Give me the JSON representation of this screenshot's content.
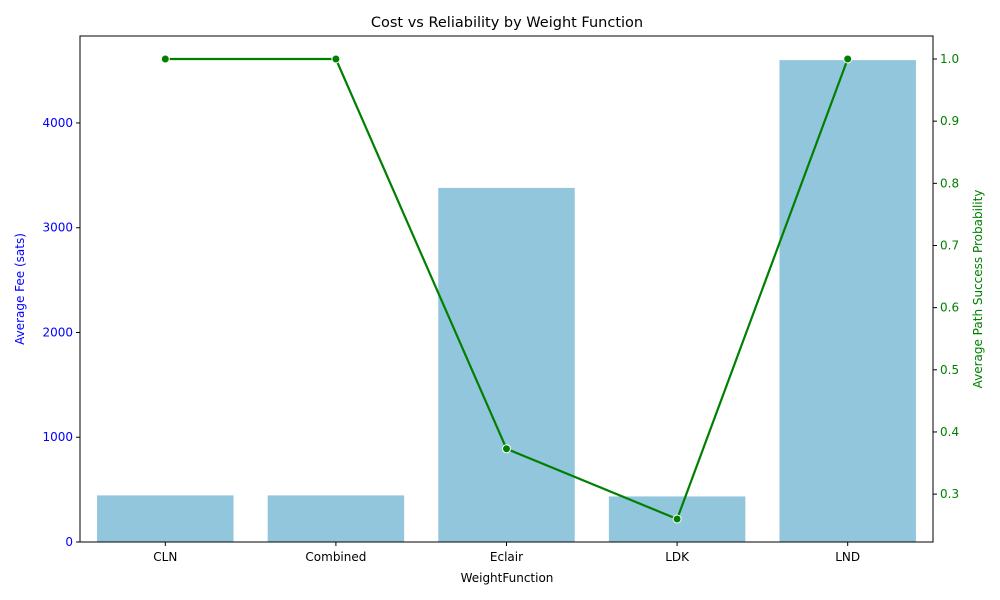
{
  "chart_data": {
    "type": "bar+line",
    "title": "Cost vs Reliability by Weight Function",
    "xlabel": "WeightFunction",
    "categories": [
      "CLN",
      "Combined",
      "Eclair",
      "LDK",
      "LND"
    ],
    "series": [
      {
        "name": "Average Fee (sats)",
        "kind": "bar",
        "axis": "left",
        "color": "#92c6dd",
        "values": [
          445,
          445,
          3380,
          435,
          4600
        ]
      },
      {
        "name": "Average Path Success Probability",
        "kind": "line",
        "axis": "right",
        "color": "#008000",
        "values": [
          1.0,
          1.0,
          0.373,
          0.26,
          1.0
        ]
      }
    ],
    "y_left": {
      "label": "Average Fee (sats)",
      "color": "#0000ff",
      "ylim": [
        0,
        4830
      ],
      "ticks": [
        0,
        1000,
        2000,
        3000,
        4000
      ],
      "tick_labels": [
        "0",
        "1000",
        "2000",
        "3000",
        "4000"
      ]
    },
    "y_right": {
      "label": "Average Path Success Probability",
      "color": "#008000",
      "ylim": [
        0.223,
        1.037
      ],
      "ticks": [
        0.3,
        0.4,
        0.5,
        0.6,
        0.7,
        0.8,
        0.9,
        1.0
      ],
      "tick_labels": [
        "0.3",
        "0.4",
        "0.5",
        "0.6",
        "0.7",
        "0.8",
        "0.9",
        "1.0"
      ]
    },
    "grid": false
  }
}
